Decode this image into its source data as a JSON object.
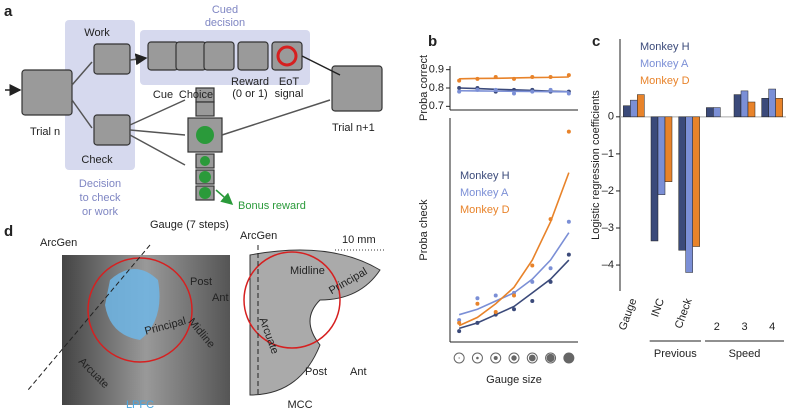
{
  "panel_a": {
    "label": "a",
    "work": "Work",
    "cued_decision": [
      "Cued",
      "decision"
    ],
    "cue": "Cue",
    "choice": "Choice",
    "reward": [
      "Reward",
      "(0 or 1)"
    ],
    "eot": [
      "EoT",
      "signal"
    ],
    "trial_n": "Trial n",
    "check": "Check",
    "decision": [
      "Decision",
      "to check",
      "or work"
    ],
    "gauge": "Gauge (7 steps)",
    "bonus": "Bonus reward",
    "trial_next": "Trial n+1"
  },
  "chart_data": [
    {
      "type": "scatter",
      "panel": "b",
      "ylabel": "Proba correct",
      "x": [
        1,
        2,
        3,
        4,
        5,
        6,
        7
      ],
      "xlim": [
        0.5,
        7.5
      ],
      "ylim": [
        0.68,
        0.92
      ],
      "yticks": [
        0.7,
        0.8,
        0.9
      ],
      "series": [
        {
          "name": "Monkey H",
          "color": "#3b4a7a",
          "values": [
            0.8,
            0.8,
            0.78,
            0.79,
            0.79,
            0.78,
            0.78
          ],
          "fit": [
            0.8,
            0.797,
            0.793,
            0.79,
            0.787,
            0.783,
            0.78
          ]
        },
        {
          "name": "Monkey A",
          "color": "#7b8fd6",
          "values": [
            0.78,
            0.79,
            0.79,
            0.77,
            0.78,
            0.79,
            0.77
          ],
          "fit": [
            0.785,
            0.784,
            0.783,
            0.782,
            0.781,
            0.78,
            0.779
          ]
        },
        {
          "name": "Monkey D",
          "color": "#e8832a",
          "values": [
            0.84,
            0.85,
            0.86,
            0.85,
            0.86,
            0.86,
            0.87
          ],
          "fit": [
            0.85,
            0.852,
            0.853,
            0.855,
            0.857,
            0.858,
            0.86
          ]
        }
      ]
    },
    {
      "type": "scatter",
      "ylabel": "Proba check",
      "xlabel": "Gauge size",
      "x": [
        1,
        2,
        3,
        4,
        5,
        6,
        7
      ],
      "xlim": [
        0.5,
        7.5
      ],
      "ylim": [
        -0.02,
        0.8
      ],
      "legend": "upper left",
      "series": [
        {
          "name": "Monkey H",
          "color": "#3b4a7a",
          "values": [
            0.02,
            0.05,
            0.08,
            0.1,
            0.13,
            0.2,
            0.3
          ],
          "fit": [
            0.03,
            0.05,
            0.08,
            0.11,
            0.16,
            0.21,
            0.28
          ]
        },
        {
          "name": "Monkey A",
          "color": "#7b8fd6",
          "values": [
            0.06,
            0.14,
            0.15,
            0.16,
            0.2,
            0.25,
            0.42
          ],
          "fit": [
            0.08,
            0.1,
            0.13,
            0.16,
            0.21,
            0.28,
            0.38
          ]
        },
        {
          "name": "Monkey D",
          "color": "#e8832a",
          "values": [
            0.05,
            0.12,
            0.09,
            0.15,
            0.26,
            0.43,
            0.75
          ],
          "fit": [
            0.04,
            0.07,
            0.12,
            0.18,
            0.28,
            0.42,
            0.6
          ]
        }
      ]
    },
    {
      "type": "bar",
      "panel": "c",
      "ylabel": "Logistic regression coefficients",
      "categories": [
        "Gauge",
        "INC",
        "Check",
        "2",
        "3",
        "4"
      ],
      "groups": [
        "Previous",
        "Speed"
      ],
      "ylim": [
        -4.7,
        2.1
      ],
      "yticks": [
        0,
        {
          "value": -1,
          "label": "–1"
        },
        {
          "value": -2,
          "label": "–2"
        },
        {
          "value": -3,
          "label": "–3"
        },
        {
          "value": -4,
          "label": "–4"
        }
      ],
      "legend": "upper left",
      "series": [
        {
          "name": "Monkey H",
          "color": "#3b4a7a",
          "values": [
            0.3,
            -3.35,
            -3.6,
            0.25,
            0.6,
            0.5
          ]
        },
        {
          "name": "Monkey A",
          "color": "#7b8fd6",
          "values": [
            0.45,
            -2.1,
            -4.2,
            0.25,
            0.7,
            0.75
          ]
        },
        {
          "name": "Monkey D",
          "color": "#e8832a",
          "values": [
            0.6,
            -1.75,
            -3.5,
            0,
            0.4,
            0.5
          ]
        }
      ]
    }
  ],
  "panel_d": {
    "label": "d",
    "lpfc": {
      "arcgen": "ArcGen",
      "post": "Post",
      "ant": "Ant",
      "midline": "Midline",
      "principal": "Principal",
      "arcuate": "Arcuate",
      "name": "LPFC"
    },
    "mcc": {
      "arcgen": "ArcGen",
      "scale": "10 mm",
      "midline": "Midline",
      "principal": "Principal",
      "arcuate": "Arcuate",
      "post": "Post",
      "ant": "Ant",
      "name": "MCC"
    }
  }
}
